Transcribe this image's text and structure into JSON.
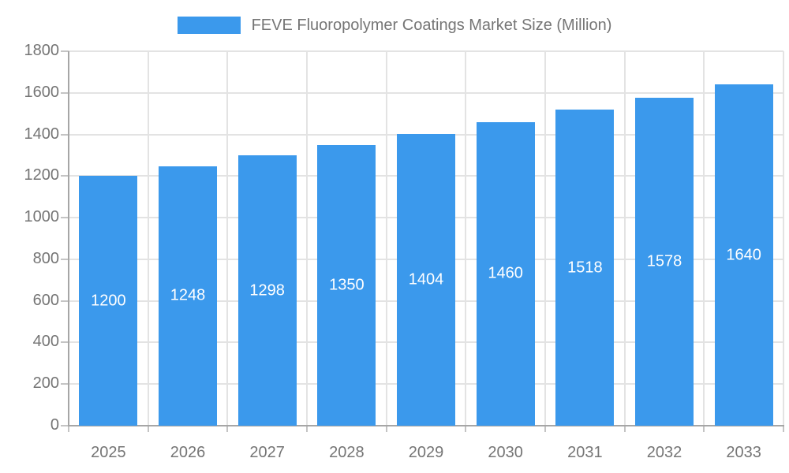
{
  "legend": {
    "label": "FEVE Fluoropolymer Coatings Market Size (Million)",
    "swatch_color": "#3b99ec"
  },
  "chart_data": {
    "type": "bar",
    "title": "FEVE Fluoropolymer Coatings Market Size (Million)",
    "categories": [
      "2025",
      "2026",
      "2027",
      "2028",
      "2029",
      "2030",
      "2031",
      "2032",
      "2033"
    ],
    "values": [
      1200,
      1248,
      1298,
      1350,
      1404,
      1460,
      1518,
      1578,
      1640
    ],
    "xlabel": "",
    "ylabel": "",
    "ylim": [
      0,
      1800
    ],
    "yticks": [
      0,
      200,
      400,
      600,
      800,
      1000,
      1200,
      1400,
      1600,
      1800
    ],
    "grid": true,
    "legend_position": "top",
    "bar_color": "#3b99ec",
    "value_label_color": "#ffffff",
    "axis_color": "#a6a6a6",
    "grid_color": "#e3e3e3",
    "text_color": "#757575"
  }
}
